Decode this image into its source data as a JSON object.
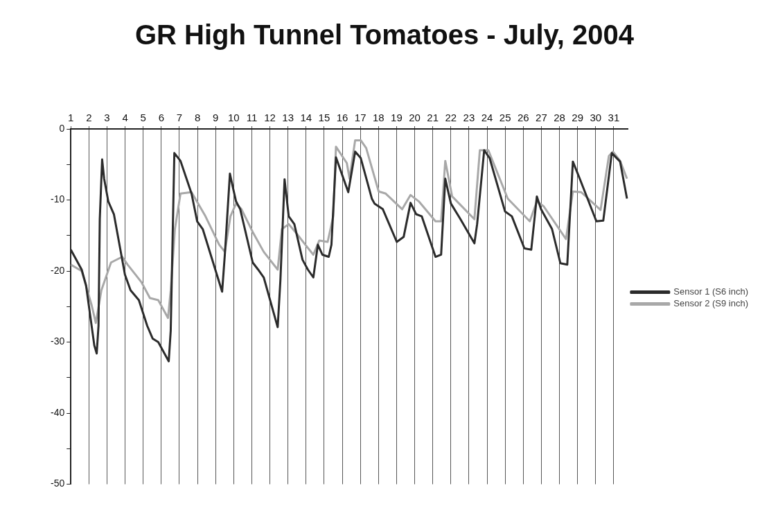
{
  "chart_data": {
    "type": "line",
    "title": "GR High Tunnel Tomatoes - July, 2004",
    "xlim": [
      1,
      31.8
    ],
    "xticks": [
      1,
      2,
      3,
      4,
      5,
      6,
      7,
      8,
      9,
      10,
      11,
      12,
      13,
      14,
      15,
      16,
      17,
      18,
      19,
      20,
      21,
      22,
      23,
      24,
      25,
      26,
      27,
      28,
      29,
      30,
      31
    ],
    "ylim": [
      -50,
      0
    ],
    "yticks": [
      0,
      {
        "value": -5,
        "label": null
      },
      -10,
      {
        "value": -15,
        "label": null
      },
      -20,
      {
        "value": -25,
        "label": null
      },
      -30,
      {
        "value": -35,
        "label": null
      },
      -40,
      {
        "value": -45,
        "label": null
      },
      -50
    ],
    "grid": "x",
    "legend": "right",
    "marker": "none",
    "series": [
      {
        "name": "Sensor 1 (S6 inch)",
        "color": "#2b2b2b",
        "x": [
          1,
          1.6,
          1.84,
          2.3,
          2.43,
          2.53,
          2.6,
          2.73,
          2.84,
          3.07,
          3.38,
          3.99,
          4.3,
          4.76,
          5.22,
          5.52,
          5.83,
          6.41,
          6.52,
          6.72,
          7.06,
          7.67,
          7.98,
          8.29,
          9.36,
          9.51,
          9.79,
          9.97,
          10.13,
          10.36,
          11.05,
          11.35,
          11.66,
          12.43,
          12.58,
          12.81,
          13.04,
          13.35,
          13.8,
          14.1,
          14.4,
          14.65,
          14.9,
          15.25,
          15.4,
          15.65,
          16.33,
          16.71,
          17.02,
          17.63,
          17.78,
          18.24,
          19.01,
          19.39,
          19.77,
          20.08,
          20.39,
          21.15,
          21.46,
          21.69,
          22,
          22.53,
          23.3,
          23.45,
          23.84,
          24.14,
          24.99,
          25.37,
          26.06,
          26.44,
          26.75,
          26.98,
          27.59,
          28.05,
          28.43,
          28.74,
          29.12,
          30.04,
          30.42,
          30.89,
          31.35,
          31.73
        ],
        "values": [
          -17,
          -19.8,
          -22,
          -30.5,
          -31.6,
          -27.7,
          -12.7,
          -4.3,
          -7,
          -10.2,
          -12,
          -20.5,
          -22.7,
          -24.1,
          -27.7,
          -29.5,
          -30,
          -32.7,
          -28.4,
          -3.4,
          -4.5,
          -9.1,
          -13,
          -14.1,
          -22.9,
          -17.7,
          -6.3,
          -8.4,
          -10.2,
          -11.3,
          -18.8,
          -19.8,
          -20.9,
          -27.9,
          -21.3,
          -7.1,
          -12.3,
          -13.4,
          -18.4,
          -19.8,
          -20.9,
          -16.3,
          -17.7,
          -18,
          -16.3,
          -4,
          -8.9,
          -3.2,
          -4.1,
          -9.8,
          -10.5,
          -11.3,
          -15.9,
          -15.2,
          -10.4,
          -12,
          -12.3,
          -18,
          -17.7,
          -7,
          -10.5,
          -12.7,
          -16.1,
          -13.4,
          -3,
          -4.1,
          -11.6,
          -12.3,
          -16.8,
          -17,
          -9.5,
          -11.3,
          -14.1,
          -18.9,
          -19.1,
          -4.6,
          -7,
          -13,
          -12.9,
          -3.4,
          -4.6,
          -9.8
        ]
      },
      {
        "name": "Sensor 2 (S9 inch)",
        "color": "#a8a8a8",
        "x": [
          1,
          1.6,
          2.15,
          2.38,
          2.69,
          3.22,
          3.84,
          4.14,
          4.91,
          5.37,
          5.83,
          6.37,
          6.52,
          6.75,
          7.06,
          7.67,
          8.44,
          9.2,
          9.51,
          9.82,
          10.13,
          10.43,
          11.05,
          11.66,
          12.43,
          12.66,
          13.04,
          13.5,
          13.96,
          14.4,
          14.73,
          15.19,
          15.5,
          15.65,
          16.25,
          16.4,
          16.71,
          17.02,
          17.32,
          18.01,
          18.4,
          19.31,
          19.77,
          20.23,
          21.15,
          21.46,
          21.69,
          22.07,
          23.3,
          23.6,
          24.07,
          25.14,
          26.36,
          26.75,
          27.13,
          28.36,
          28.74,
          29.2,
          30.27,
          30.73,
          30.96,
          31.35,
          31.73
        ],
        "values": [
          -19.1,
          -20,
          -24.8,
          -27.3,
          -22.7,
          -18.8,
          -18,
          -19.1,
          -21.6,
          -23.8,
          -24.1,
          -26.6,
          -22.7,
          -14.1,
          -9.1,
          -8.9,
          -12.3,
          -16.3,
          -17.3,
          -12.3,
          -10.5,
          -11.3,
          -14.5,
          -17.3,
          -19.8,
          -14.1,
          -13.4,
          -14.8,
          -16.3,
          -17.7,
          -15.7,
          -15.9,
          -12.3,
          -2.5,
          -4.8,
          -7,
          -1.6,
          -1.6,
          -2.7,
          -8.8,
          -9.1,
          -11.3,
          -9.3,
          -10.2,
          -13,
          -13,
          -4.5,
          -9.5,
          -12.7,
          -3,
          -3,
          -9.8,
          -13,
          -10.2,
          -10.9,
          -15.5,
          -8.8,
          -8.9,
          -11.4,
          -3.8,
          -3.2,
          -4.5,
          -7
        ]
      }
    ]
  }
}
